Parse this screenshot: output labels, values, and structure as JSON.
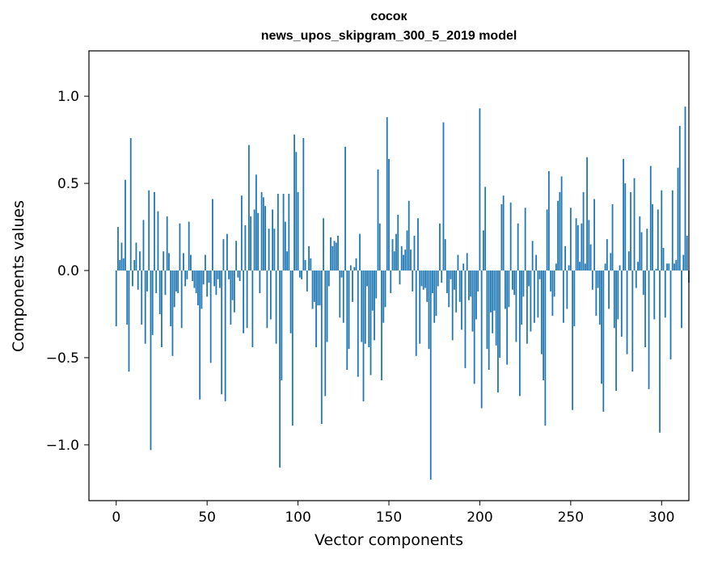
{
  "chart_data": {
    "type": "bar",
    "title": "сосок",
    "subtitle": "news_upos_skipgram_300_5_2019 model",
    "xlabel": "Vector components",
    "ylabel": "Components values",
    "xlim": [
      -15,
      315
    ],
    "ylim": [
      -1.32,
      1.26
    ],
    "xticks": [
      0,
      50,
      100,
      150,
      200,
      250,
      300
    ],
    "xtick_labels": [
      "0",
      "50",
      "100",
      "150",
      "200",
      "250",
      "300"
    ],
    "yticks": [
      -1.0,
      -0.5,
      0.0,
      0.5,
      1.0
    ],
    "ytick_labels": [
      "−1.0",
      "−0.5",
      "0.0",
      "0.5",
      "1.0"
    ],
    "grid": false,
    "color": "#1f77b4",
    "x_start": 0,
    "values": [
      -0.32,
      0.25,
      0.06,
      0.16,
      0.07,
      0.52,
      -0.31,
      -0.58,
      0.76,
      -0.09,
      0.06,
      0.16,
      -0.11,
      0.11,
      -0.31,
      0.29,
      -0.42,
      -0.12,
      0.46,
      -1.03,
      -0.37,
      0.45,
      -0.13,
      0.34,
      -0.25,
      -0.44,
      0.11,
      -0.14,
      0.31,
      0.1,
      -0.32,
      -0.49,
      -0.21,
      -0.12,
      -0.13,
      0.27,
      -0.33,
      0.1,
      -0.09,
      -0.05,
      0.28,
      0.09,
      -0.06,
      -0.1,
      -0.13,
      -0.2,
      -0.74,
      -0.22,
      -0.08,
      0.09,
      -0.15,
      -0.07,
      -0.53,
      0.41,
      -0.09,
      -0.14,
      -0.05,
      -0.1,
      -0.71,
      0.18,
      -0.75,
      0.21,
      -0.05,
      -0.31,
      -0.17,
      -0.24,
      0.17,
      -0.04,
      -0.06,
      0.43,
      -0.36,
      0.26,
      -0.33,
      0.72,
      0.31,
      -0.44,
      0.35,
      0.55,
      0.33,
      -0.13,
      0.45,
      0.42,
      0.37,
      -0.33,
      0.24,
      -0.28,
      0.35,
      0.24,
      -0.42,
      0.44,
      -1.13,
      -0.63,
      0.44,
      0.28,
      0.11,
      0.44,
      -0.36,
      -0.89,
      0.78,
      0.68,
      0.45,
      -0.04,
      -0.05,
      0.76,
      0.06,
      -0.12,
      0.14,
      0.07,
      -0.22,
      -0.18,
      -0.44,
      -0.2,
      -0.2,
      -0.88,
      0.3,
      -0.72,
      -0.41,
      -0.09,
      0.19,
      0.14,
      0.17,
      0.16,
      0.2,
      -0.27,
      -0.04,
      -0.3,
      0.71,
      -0.57,
      -0.45,
      0.03,
      -0.18,
      0.02,
      0.07,
      -0.61,
      0.21,
      -0.41,
      -0.75,
      -0.42,
      -0.09,
      -0.44,
      -0.6,
      -0.23,
      -0.4,
      -0.16,
      0.58,
      0.27,
      -0.63,
      -0.3,
      -0.21,
      0.88,
      0.64,
      -0.13,
      0.18,
      0.11,
      0.21,
      0.32,
      -0.08,
      0.14,
      0.09,
      0.12,
      0.23,
      0.4,
      0.12,
      -0.12,
      0.2,
      -0.49,
      0.3,
      -0.42,
      -0.09,
      -0.11,
      -0.1,
      -0.18,
      -0.45,
      -1.2,
      -0.13,
      -0.3,
      -0.26,
      -0.09,
      0.27,
      -0.07,
      0.85,
      0.18,
      -0.13,
      -0.21,
      -0.05,
      -0.4,
      -0.11,
      -0.24,
      0.09,
      -0.18,
      -0.34,
      0.04,
      -0.56,
      0.1,
      -0.17,
      -0.15,
      -0.35,
      -0.65,
      -0.28,
      -0.12,
      0.93,
      -0.79,
      0.23,
      0.48,
      -0.45,
      -0.57,
      -0.24,
      -0.36,
      -0.23,
      -0.43,
      -0.7,
      -0.5,
      0.38,
      0.43,
      -0.22,
      -0.54,
      -0.21,
      0.39,
      -0.11,
      -0.14,
      -0.41,
      0.27,
      -0.72,
      -0.31,
      -0.15,
      0.36,
      -0.42,
      -0.09,
      -0.35,
      0.17,
      -0.3,
      0.09,
      -0.27,
      -0.05,
      -0.48,
      -0.63,
      -0.89,
      0.35,
      0.57,
      -0.12,
      -0.26,
      -0.15,
      0.04,
      0.4,
      0.45,
      0.54,
      -0.3,
      0.14,
      -0.22,
      0.03,
      0.36,
      -0.8,
      -0.32,
      0.3,
      0.26,
      0.05,
      0.27,
      0.45,
      0.04,
      0.65,
      0.29,
      0.15,
      -0.11,
      0.41,
      -0.26,
      -0.1,
      -0.31,
      -0.65,
      -0.81,
      0.04,
      0.18,
      -0.22,
      0.1,
      0.38,
      -0.33,
      -0.69,
      -0.28,
      0.03,
      -0.38,
      0.64,
      0.5,
      -0.48,
      0.11,
      0.45,
      -0.58,
      0.53,
      -0.1,
      0.05,
      0.31,
      0.22,
      -0.14,
      -0.44,
      0.24,
      -0.68,
      0.6,
      0.38,
      -0.28,
      0.01,
      0.35,
      -0.93,
      0.46,
      0.13,
      -0.27,
      0.04,
      0.04,
      -0.51,
      0.46,
      0.04,
      0.06,
      0.59,
      0.83,
      -0.33,
      0.09,
      0.94,
      0.2,
      -0.07
    ]
  }
}
